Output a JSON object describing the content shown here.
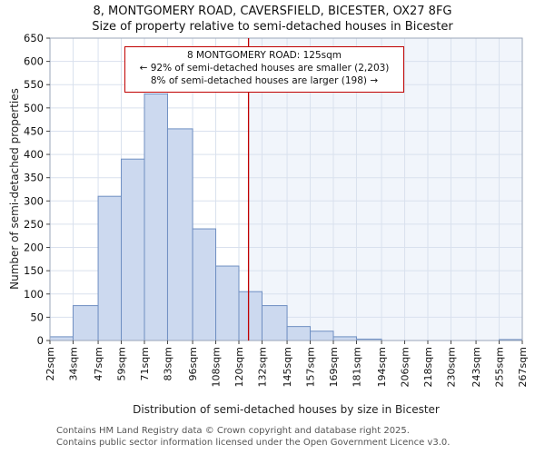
{
  "title": "8, MONTGOMERY ROAD, CAVERSFIELD, BICESTER, OX27 8FG",
  "subtitle": "Size of property relative to semi-detached houses in Bicester",
  "chart_data": {
    "type": "bar",
    "title": "8, MONTGOMERY ROAD, CAVERSFIELD, BICESTER, OX27 8FG",
    "subtitle": "Size of property relative to semi-detached houses in Bicester",
    "xlabel": "Distribution of semi-detached houses by size in Bicester",
    "ylabel": "Number of semi-detached properties",
    "ylim": [
      0,
      650
    ],
    "y_ticks": [
      0,
      50,
      100,
      150,
      200,
      250,
      300,
      350,
      400,
      450,
      500,
      550,
      600,
      650
    ],
    "bin_edges_sqm": [
      22,
      34,
      47,
      59,
      71,
      83,
      96,
      108,
      120,
      132,
      145,
      157,
      169,
      181,
      194,
      206,
      218,
      230,
      243,
      255,
      267
    ],
    "x_tick_labels": [
      "22sqm",
      "34sqm",
      "47sqm",
      "59sqm",
      "71sqm",
      "83sqm",
      "96sqm",
      "108sqm",
      "120sqm",
      "132sqm",
      "145sqm",
      "157sqm",
      "169sqm",
      "181sqm",
      "194sqm",
      "206sqm",
      "218sqm",
      "230sqm",
      "243sqm",
      "255sqm",
      "267sqm"
    ],
    "values": [
      8,
      75,
      310,
      390,
      530,
      455,
      240,
      160,
      105,
      75,
      30,
      20,
      8,
      3,
      0,
      0,
      0,
      0,
      0,
      2
    ],
    "marker_value_sqm": 125,
    "grid": true,
    "legend": "none",
    "marker_color": "#c00000",
    "bar_fill": "#ccd9ef",
    "bar_stroke": "#6f8fc2",
    "grid_color": "#d9e1ee",
    "shade_color": "#e8eef8",
    "border_color": "#9aa5b8",
    "tick_color": "#444"
  },
  "annotation": {
    "line1": "8 MONTGOMERY ROAD: 125sqm",
    "line2": "← 92% of semi-detached houses are smaller (2,203)",
    "line3": "8% of semi-detached houses are larger (198) →"
  },
  "footer": {
    "line1": "Contains HM Land Registry data © Crown copyright and database right 2025.",
    "line2": "Contains public sector information licensed under the Open Government Licence v3.0."
  }
}
